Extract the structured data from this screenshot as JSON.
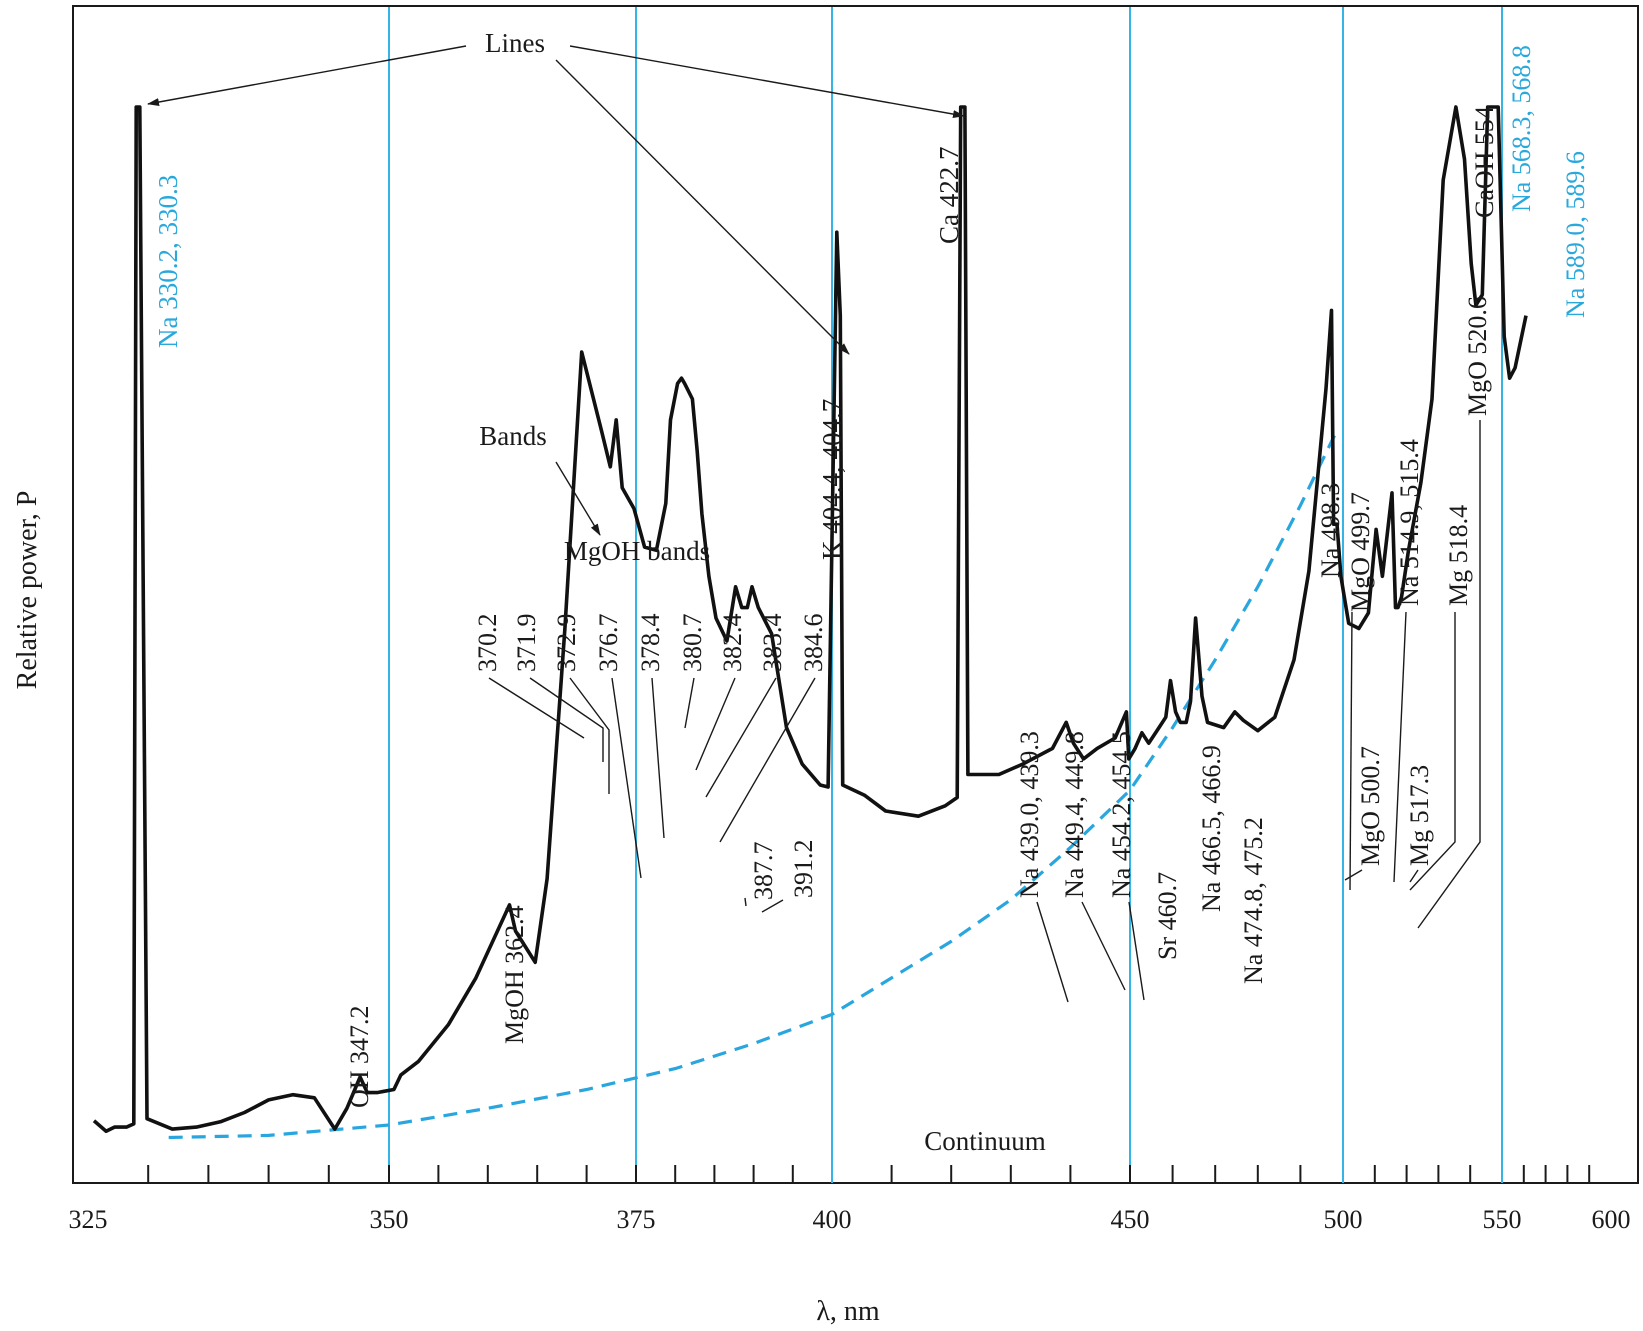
{
  "chart_data": {
    "type": "line",
    "title": "",
    "xlabel": "λ, nm",
    "ylabel": "Relative power, P",
    "x_ticks": [
      "325",
      "350",
      "375",
      "400",
      "450",
      "500",
      "550",
      "600"
    ],
    "x_tick_values": [
      325,
      350,
      375,
      400,
      450,
      500,
      550,
      600
    ],
    "highlight_lines": [
      350,
      375,
      400,
      450,
      500,
      550
    ],
    "spectrum": [
      [
        325.5,
        0.028
      ],
      [
        326.5,
        0.018
      ],
      [
        327.2,
        0.022
      ],
      [
        328.2,
        0.022
      ],
      [
        328.8,
        0.025
      ],
      [
        329.0,
        1.0
      ],
      [
        329.3,
        1.0
      ],
      [
        329.9,
        0.03
      ],
      [
        332,
        0.02
      ],
      [
        334,
        0.022
      ],
      [
        336,
        0.027
      ],
      [
        338,
        0.036
      ],
      [
        340,
        0.048
      ],
      [
        342,
        0.053
      ],
      [
        343.8,
        0.05
      ],
      [
        345.5,
        0.02
      ],
      [
        346.5,
        0.04
      ],
      [
        347.6,
        0.07
      ],
      [
        348.2,
        0.055
      ],
      [
        349,
        0.055
      ],
      [
        350.5,
        0.058
      ],
      [
        351.2,
        0.072
      ],
      [
        353,
        0.085
      ],
      [
        356,
        0.12
      ],
      [
        358.8,
        0.165
      ],
      [
        360.5,
        0.2
      ],
      [
        362.2,
        0.235
      ],
      [
        362.8,
        0.21
      ],
      [
        364.8,
        0.18
      ],
      [
        366,
        0.26
      ],
      [
        367.8,
        0.5
      ],
      [
        369.5,
        0.765
      ],
      [
        371.5,
        0.69
      ],
      [
        372.4,
        0.655
      ],
      [
        373,
        0.7
      ],
      [
        373.6,
        0.635
      ],
      [
        374.8,
        0.615
      ],
      [
        376.1,
        0.578
      ],
      [
        377.6,
        0.575
      ],
      [
        378.8,
        0.62
      ],
      [
        379.4,
        0.7
      ],
      [
        380.3,
        0.735
      ],
      [
        380.8,
        0.74
      ],
      [
        381.2,
        0.735
      ],
      [
        382.2,
        0.72
      ],
      [
        382.8,
        0.67
      ],
      [
        383.4,
        0.61
      ],
      [
        384.3,
        0.55
      ],
      [
        385.2,
        0.51
      ],
      [
        386.6,
        0.488
      ],
      [
        387.7,
        0.54
      ],
      [
        388.5,
        0.52
      ],
      [
        389.2,
        0.52
      ],
      [
        389.8,
        0.54
      ],
      [
        390.6,
        0.52
      ],
      [
        392.3,
        0.495
      ],
      [
        394.2,
        0.405
      ],
      [
        396.2,
        0.37
      ],
      [
        398.5,
        0.35
      ],
      [
        399.5,
        0.348
      ],
      [
        400.8,
        0.88
      ],
      [
        401.4,
        0.8
      ],
      [
        401.8,
        0.35
      ],
      [
        405.5,
        0.34
      ],
      [
        409,
        0.325
      ],
      [
        414.5,
        0.32
      ],
      [
        419,
        0.33
      ],
      [
        421,
        0.338
      ],
      [
        421.6,
        1.0
      ],
      [
        422.3,
        1.0
      ],
      [
        422.8,
        0.36
      ],
      [
        428,
        0.36
      ],
      [
        432,
        0.37
      ],
      [
        437,
        0.385
      ],
      [
        439.3,
        0.41
      ],
      [
        440.5,
        0.39
      ],
      [
        442.2,
        0.375
      ],
      [
        444.5,
        0.385
      ],
      [
        447.5,
        0.395
      ],
      [
        449.4,
        0.42
      ],
      [
        449.8,
        0.375
      ],
      [
        451.2,
        0.385
      ],
      [
        452.8,
        0.4
      ],
      [
        454.4,
        0.39
      ],
      [
        456.8,
        0.405
      ],
      [
        458.4,
        0.415
      ],
      [
        459.5,
        0.45
      ],
      [
        460.7,
        0.42
      ],
      [
        461.8,
        0.41
      ],
      [
        463.2,
        0.41
      ],
      [
        464.2,
        0.43
      ],
      [
        465.4,
        0.51
      ],
      [
        466.9,
        0.435
      ],
      [
        468.2,
        0.41
      ],
      [
        472,
        0.405
      ],
      [
        474.6,
        0.42
      ],
      [
        476.6,
        0.412
      ],
      [
        480,
        0.402
      ],
      [
        484,
        0.415
      ],
      [
        488.5,
        0.47
      ],
      [
        492,
        0.555
      ],
      [
        496,
        0.73
      ],
      [
        497.3,
        0.805
      ],
      [
        497.8,
        0.6
      ],
      [
        498.6,
        0.6
      ],
      [
        499.5,
        0.55
      ],
      [
        500.7,
        0.525
      ],
      [
        501.8,
        0.505
      ],
      [
        505,
        0.5
      ],
      [
        508,
        0.515
      ],
      [
        510.4,
        0.595
      ],
      [
        512.4,
        0.55
      ],
      [
        515.4,
        0.63
      ],
      [
        516.5,
        0.52
      ],
      [
        517.3,
        0.52
      ],
      [
        518.4,
        0.53
      ],
      [
        520.6,
        0.575
      ],
      [
        524.5,
        0.64
      ],
      [
        528,
        0.72
      ],
      [
        531.5,
        0.93
      ],
      [
        535.5,
        1.0
      ],
      [
        538.2,
        0.95
      ],
      [
        540.3,
        0.85
      ],
      [
        541.8,
        0.81
      ],
      [
        543.8,
        0.82
      ],
      [
        545.5,
        1.0
      ],
      [
        547.3,
        1.0
      ],
      [
        548.8,
        1.0
      ],
      [
        551,
        0.78
      ],
      [
        553.5,
        0.74
      ],
      [
        556,
        0.75
      ],
      [
        561,
        0.8
      ]
    ],
    "continuum": [
      [
        331.7,
        0.012
      ],
      [
        340,
        0.014
      ],
      [
        350,
        0.024
      ],
      [
        360,
        0.04
      ],
      [
        370,
        0.058
      ],
      [
        380,
        0.078
      ],
      [
        390,
        0.102
      ],
      [
        400,
        0.13
      ],
      [
        410,
        0.165
      ],
      [
        420,
        0.2
      ],
      [
        430,
        0.24
      ],
      [
        440,
        0.29
      ],
      [
        450,
        0.345
      ],
      [
        460,
        0.405
      ],
      [
        470,
        0.47
      ],
      [
        480,
        0.54
      ],
      [
        490,
        0.618
      ],
      [
        498,
        0.685
      ]
    ],
    "annotations": [
      {
        "text": "Na 330.2, 330.3",
        "color": "#29a8dc"
      },
      {
        "text": "OH 347.2"
      },
      {
        "text": "MgOH 362.4"
      },
      {
        "text": "370.2"
      },
      {
        "text": "371.9"
      },
      {
        "text": "372.9"
      },
      {
        "text": "376.7"
      },
      {
        "text": "378.4"
      },
      {
        "text": "380.7"
      },
      {
        "text": "382.4"
      },
      {
        "text": "383.4"
      },
      {
        "text": "384.6"
      },
      {
        "text": "387.7"
      },
      {
        "text": "391.2"
      },
      {
        "text": "K 404.4, 404.7"
      },
      {
        "text": "Ca 422.7"
      },
      {
        "text": "Na 439.0, 439.3"
      },
      {
        "text": "Na 449.4, 449.8"
      },
      {
        "text": "Na 454.2, 454.5"
      },
      {
        "text": "Sr 460.7"
      },
      {
        "text": "Na 466.5, 466.9"
      },
      {
        "text": "Na 474.8, 475.2"
      },
      {
        "text": "Na 498.3"
      },
      {
        "text": "MgO 499.7"
      },
      {
        "text": "MgO 500.7"
      },
      {
        "text": "Na 514.9, 515.4"
      },
      {
        "text": "Mg 517.3"
      },
      {
        "text": "Mg 518.4"
      },
      {
        "text": "MgO 520.6"
      },
      {
        "text": "CaOH 554"
      },
      {
        "text": "Na 568.3, 568.8",
        "color": "#29a8dc"
      },
      {
        "text": "Na 589.0, 589.6",
        "color": "#29a8dc"
      },
      {
        "text": "Lines"
      },
      {
        "text": "Bands"
      },
      {
        "text": "MgOH bands"
      },
      {
        "text": "Continuum"
      }
    ],
    "colors": {
      "spectrum": "#111111",
      "continuum": "#2aa6df",
      "highlight": "#35b5e5"
    }
  }
}
